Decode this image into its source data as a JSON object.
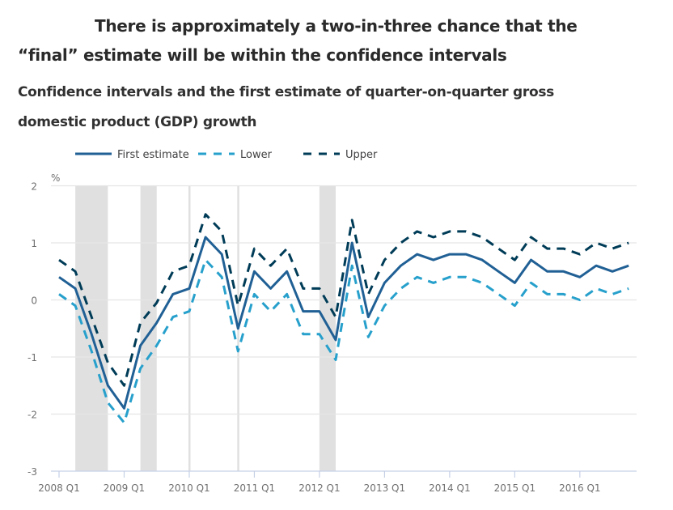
{
  "headline": {
    "line1": "There is approximately a two-in-three chance that the",
    "line2": "“final” estimate will be within the confidence intervals"
  },
  "chart_data": {
    "type": "line",
    "title": "Confidence intervals and the first estimate of quarter-on-quarter gross domestic product (GDP) growth",
    "title_lines": [
      "Confidence intervals and the first estimate of quarter-on-quarter gross",
      "domestic product (GDP) growth"
    ],
    "ylabel": "%",
    "xlabel": "",
    "ylim": [
      -3,
      2
    ],
    "yticks": [
      2,
      1,
      0,
      -1,
      -2,
      -3
    ],
    "grid": true,
    "legend_position": "top-left",
    "x": [
      "2008 Q1",
      "2008 Q2",
      "2008 Q3",
      "2008 Q4",
      "2009 Q1",
      "2009 Q2",
      "2009 Q3",
      "2009 Q4",
      "2010 Q1",
      "2010 Q2",
      "2010 Q3",
      "2010 Q4",
      "2011 Q1",
      "2011 Q2",
      "2011 Q3",
      "2011 Q4",
      "2012 Q1",
      "2012 Q2",
      "2012 Q3",
      "2012 Q4",
      "2013 Q1",
      "2013 Q2",
      "2013 Q3",
      "2013 Q4",
      "2014 Q1",
      "2014 Q2",
      "2014 Q3",
      "2014 Q4",
      "2015 Q1",
      "2015 Q2",
      "2015 Q3",
      "2015 Q4",
      "2016 Q1",
      "2016 Q2",
      "2016 Q3",
      "2016 Q4"
    ],
    "xtick_labels": [
      "2008 Q1",
      "2009 Q1",
      "2010 Q1",
      "2011 Q1",
      "2012 Q1",
      "2013 Q1",
      "2014 Q1",
      "2015 Q1",
      "2016 Q1"
    ],
    "series": [
      {
        "name": "First estimate",
        "style": "solid",
        "color": "#206095",
        "values": [
          0.4,
          0.2,
          -0.6,
          -1.5,
          -1.9,
          -0.8,
          -0.4,
          0.1,
          0.2,
          1.1,
          0.8,
          -0.5,
          0.5,
          0.2,
          0.5,
          -0.2,
          -0.2,
          -0.7,
          1.0,
          -0.3,
          0.3,
          0.6,
          0.8,
          0.7,
          0.8,
          0.8,
          0.7,
          0.5,
          0.3,
          0.7,
          0.5,
          0.5,
          0.4,
          0.6,
          0.5,
          0.6
        ]
      },
      {
        "name": "Lower",
        "style": "dashed",
        "color": "#27a0cc",
        "values": [
          0.1,
          -0.1,
          -0.9,
          -1.8,
          -2.15,
          -1.2,
          -0.8,
          -0.3,
          -0.2,
          0.7,
          0.4,
          -0.9,
          0.1,
          -0.2,
          0.1,
          -0.6,
          -0.6,
          -1.05,
          0.6,
          -0.65,
          -0.1,
          0.2,
          0.4,
          0.3,
          0.4,
          0.4,
          0.3,
          0.1,
          -0.1,
          0.3,
          0.1,
          0.1,
          0.0,
          0.2,
          0.1,
          0.2
        ]
      },
      {
        "name": "Upper",
        "style": "dashed",
        "color": "#003c57",
        "values": [
          0.7,
          0.5,
          -0.3,
          -1.1,
          -1.5,
          -0.4,
          -0.05,
          0.5,
          0.6,
          1.5,
          1.2,
          -0.1,
          0.9,
          0.6,
          0.9,
          0.2,
          0.2,
          -0.3,
          1.4,
          0.1,
          0.7,
          1.0,
          1.2,
          1.1,
          1.2,
          1.2,
          1.1,
          0.9,
          0.7,
          1.1,
          0.9,
          0.9,
          0.8,
          1.0,
          0.9,
          1.0
        ]
      }
    ],
    "shaded_periods": [
      {
        "from": "2008 Q2",
        "to": "2009 Q4_start",
        "start_index": 1,
        "end_index": 3
      },
      {
        "from": "2009 Q3",
        "to": "2009 Q3",
        "start_index": 5,
        "end_index": 6
      },
      {
        "from": "2012 Q1",
        "to": "2012 Q2",
        "start_index": 16,
        "end_index": 17
      }
    ],
    "marker_lines": [
      8,
      11
    ],
    "colors": {
      "grid": "#e5e5e5",
      "band": "#e0e0e0",
      "axis": "#c5d0e6",
      "tick_text": "#707071",
      "legend_text": "#414042"
    }
  }
}
